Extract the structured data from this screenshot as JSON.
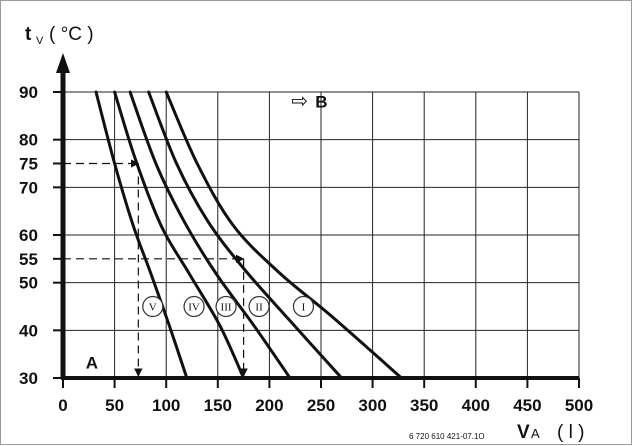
{
  "chart_data": {
    "type": "line",
    "y_axis_title": "t",
    "y_axis_subscript": "V",
    "y_axis_unit": "( °C )",
    "x_axis_title": "V",
    "x_axis_subscript": "A",
    "x_axis_unit": "( l )",
    "xlim": [
      0,
      500
    ],
    "ylim": [
      30,
      90
    ],
    "x_ticks": [
      0,
      50,
      100,
      150,
      200,
      250,
      300,
      350,
      400,
      450,
      500
    ],
    "x_tick_labels": [
      "0",
      "50",
      "100",
      "150",
      "200",
      "250",
      "300",
      "350",
      "400",
      "450",
      "500"
    ],
    "y_ticks": [
      30,
      40,
      50,
      55,
      60,
      70,
      75,
      80,
      90
    ],
    "y_tick_labels": [
      "30",
      "40",
      "50",
      "55",
      "60",
      "70",
      "75",
      "80",
      "90"
    ],
    "v_grid": [
      50,
      100,
      150,
      200,
      250,
      300,
      350,
      400,
      450,
      500
    ],
    "h_grid": [
      40,
      50,
      60,
      70,
      80,
      90
    ],
    "grid": true,
    "series": [
      {
        "name": "I",
        "label_at": [
          233,
          45
        ],
        "points": [
          [
            100,
            90
          ],
          [
            130,
            75
          ],
          [
            165,
            62
          ],
          [
            210,
            52
          ],
          [
            260,
            43
          ],
          [
            328,
            30
          ]
        ]
      },
      {
        "name": "II",
        "label_at": [
          190,
          45
        ],
        "points": [
          [
            83,
            90
          ],
          [
            110,
            75
          ],
          [
            140,
            63
          ],
          [
            175,
            53
          ],
          [
            220,
            42
          ],
          [
            270,
            30
          ]
        ]
      },
      {
        "name": "III",
        "label_at": [
          158,
          45
        ],
        "points": [
          [
            65,
            90
          ],
          [
            90,
            75
          ],
          [
            117,
            63
          ],
          [
            148,
            52
          ],
          [
            185,
            41
          ],
          [
            220,
            30
          ]
        ]
      },
      {
        "name": "IV",
        "label_at": [
          127,
          45
        ],
        "points": [
          [
            50,
            90
          ],
          [
            70,
            76
          ],
          [
            95,
            62
          ],
          [
            122,
            52
          ],
          [
            152,
            41
          ],
          [
            175,
            30
          ]
        ]
      },
      {
        "name": "V",
        "label_at": [
          87,
          45
        ],
        "points": [
          [
            32,
            90
          ],
          [
            50,
            75
          ],
          [
            68,
            62
          ],
          [
            85,
            52
          ],
          [
            103,
            41
          ],
          [
            120,
            30
          ]
        ]
      }
    ],
    "reading_lines": [
      {
        "from": [
          0,
          75
        ],
        "corner": [
          73,
          75
        ],
        "to": [
          73,
          30
        ]
      },
      {
        "from": [
          0,
          55
        ],
        "corner": [
          175,
          55
        ],
        "to": [
          175,
          30
        ]
      }
    ],
    "annotations": [
      {
        "text": "B",
        "symbol": "⇨",
        "at": [
          225,
          88
        ]
      },
      {
        "text": "A",
        "at": [
          22,
          33
        ]
      }
    ],
    "footnote": "6 720 610 421-07.1O"
  }
}
